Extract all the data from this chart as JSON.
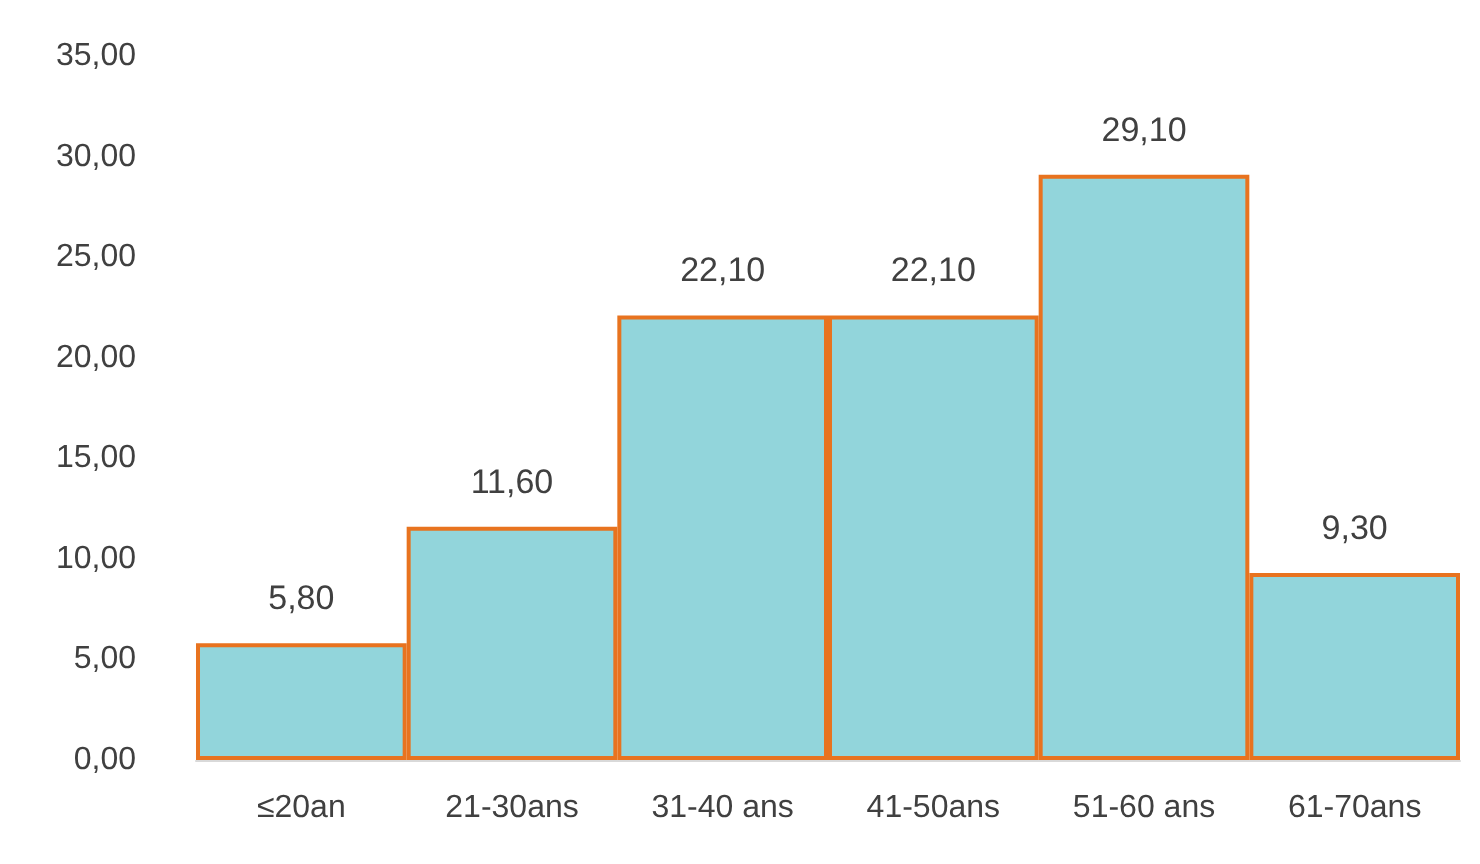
{
  "chart_data": {
    "type": "bar",
    "categories": [
      "≤20an",
      "21-30ans",
      "31-40 ans",
      "41-50ans",
      "51-60 ans",
      "61-70ans"
    ],
    "values": [
      5.8,
      11.6,
      22.1,
      22.1,
      29.1,
      9.3
    ],
    "value_labels": [
      "5,80",
      "11,60",
      "22,10",
      "22,10",
      "29,10",
      "9,30"
    ],
    "color": "#92d5db",
    "ylim": [
      0,
      35
    ],
    "yticks": [
      {
        "value": 0,
        "label": "0,00"
      },
      {
        "value": 5,
        "label": "5,00"
      },
      {
        "value": 10,
        "label": "10,00"
      },
      {
        "value": 15,
        "label": "15,00"
      },
      {
        "value": 20,
        "label": "20,00"
      },
      {
        "value": 25,
        "label": "25,00"
      },
      {
        "value": 30,
        "label": "30,00"
      },
      {
        "value": 35,
        "label": "35,00"
      }
    ],
    "grid": false
  }
}
